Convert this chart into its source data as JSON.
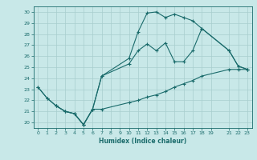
{
  "xlabel": "Humidex (Indice chaleur)",
  "bg_color": "#c8e8e8",
  "grid_color": "#a8cece",
  "line_color": "#1a6b6b",
  "xlim": [
    -0.5,
    23.5
  ],
  "ylim": [
    19.5,
    30.5
  ],
  "xticks": [
    0,
    1,
    2,
    3,
    4,
    5,
    6,
    7,
    8,
    9,
    10,
    11,
    12,
    13,
    14,
    15,
    16,
    17,
    18,
    19,
    21,
    22,
    23
  ],
  "yticks": [
    20,
    21,
    22,
    23,
    24,
    25,
    26,
    27,
    28,
    29,
    30
  ],
  "curve_top_x": [
    0,
    1,
    2,
    3,
    4,
    5,
    6,
    7,
    10,
    11,
    12,
    13,
    14,
    15,
    16,
    17,
    18,
    21,
    22,
    23
  ],
  "curve_top_y": [
    23.2,
    22.2,
    21.5,
    21.0,
    20.8,
    19.8,
    21.2,
    24.2,
    25.8,
    28.2,
    29.9,
    30.0,
    29.5,
    29.8,
    29.5,
    29.2,
    28.5,
    26.5,
    25.1,
    24.8
  ],
  "curve_mid_x": [
    0,
    1,
    2,
    3,
    4,
    5,
    6,
    7,
    10,
    11,
    12,
    13,
    14,
    15,
    16,
    17,
    18,
    21,
    22,
    23
  ],
  "curve_mid_y": [
    23.2,
    22.2,
    21.5,
    21.0,
    20.8,
    19.8,
    21.2,
    24.2,
    25.3,
    26.5,
    27.1,
    26.5,
    27.2,
    25.5,
    25.5,
    26.5,
    28.5,
    26.5,
    25.1,
    24.8
  ],
  "curve_bot_x": [
    2,
    3,
    4,
    5,
    6,
    7,
    10,
    11,
    12,
    13,
    14,
    15,
    16,
    17,
    18,
    21,
    22,
    23
  ],
  "curve_bot_y": [
    21.5,
    21.0,
    20.8,
    19.8,
    21.2,
    21.2,
    21.8,
    22.0,
    22.3,
    22.5,
    22.8,
    23.2,
    23.5,
    23.8,
    24.2,
    24.8,
    24.8,
    24.8
  ]
}
